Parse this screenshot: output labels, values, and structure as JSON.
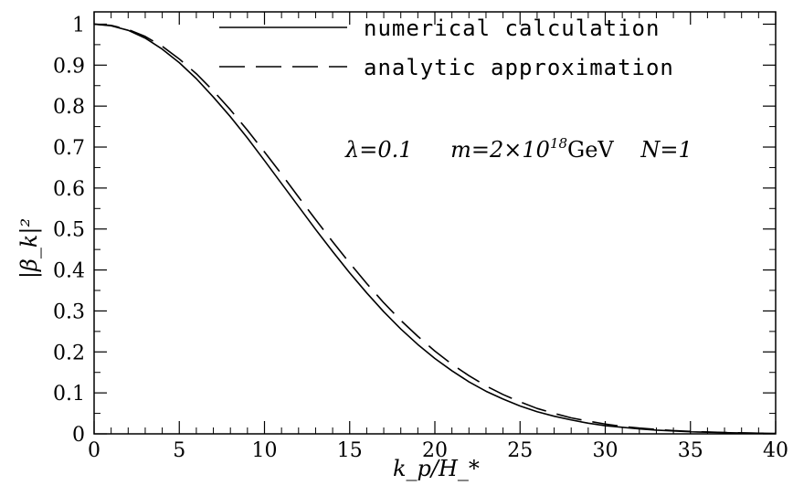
{
  "chart_data": {
    "type": "line",
    "x_ticks": [
      0,
      5,
      10,
      15,
      20,
      25,
      30,
      35,
      40
    ],
    "y_ticks": [
      0,
      0.1,
      0.2,
      0.3,
      0.4,
      0.5,
      0.6,
      0.7,
      0.8,
      0.9,
      1
    ],
    "x_tick_labels": [
      "0",
      "5",
      "10",
      "15",
      "20",
      "25",
      "30",
      "35",
      "40"
    ],
    "y_tick_labels": [
      "0",
      "0.1",
      "0.2",
      "0.3",
      "0.4",
      "0.5",
      "0.6",
      "0.7",
      "0.8",
      "0.9",
      "1"
    ],
    "xlim": [
      0,
      40
    ],
    "ylim": [
      0,
      1.03
    ],
    "xlabel": "k_p/H_*",
    "ylabel": "|β_k|²",
    "legend_position": "top",
    "grid": false,
    "annotation": {
      "lambda": "λ=0.1",
      "mass_prefix": "m=2×10",
      "mass_exp": "18",
      "mass_unit": "GeV",
      "n": "N=1"
    },
    "series": [
      {
        "name": "numerical calculation",
        "style": "solid",
        "x": [
          0,
          1,
          2,
          3,
          4,
          5,
          6,
          7,
          8,
          9,
          10,
          11,
          12,
          13,
          14,
          15,
          16,
          17,
          18,
          19,
          20,
          21,
          22,
          23,
          24,
          25,
          26,
          27,
          28,
          29,
          30,
          31,
          32,
          33,
          34,
          35,
          36,
          37,
          38,
          39,
          40
        ],
        "y": [
          1.0,
          0.996,
          0.985,
          0.966,
          0.939,
          0.906,
          0.867,
          0.822,
          0.774,
          0.722,
          0.667,
          0.611,
          0.555,
          0.499,
          0.445,
          0.393,
          0.344,
          0.298,
          0.256,
          0.218,
          0.184,
          0.154,
          0.127,
          0.104,
          0.085,
          0.068,
          0.054,
          0.043,
          0.034,
          0.026,
          0.02,
          0.016,
          0.012,
          0.009,
          0.007,
          0.005,
          0.004,
          0.003,
          0.002,
          0.0015,
          0.001
        ]
      },
      {
        "name": "analytic approximation",
        "style": "dashed",
        "x": [
          0,
          1,
          2,
          3,
          4,
          5,
          6,
          7,
          8,
          9,
          10,
          11,
          12,
          13,
          14,
          15,
          16,
          17,
          18,
          19,
          20,
          21,
          22,
          23,
          24,
          25,
          26,
          27,
          28,
          29,
          30,
          31,
          32,
          33,
          34,
          35,
          36,
          37,
          38,
          39,
          40
        ],
        "y": [
          1.0,
          0.997,
          0.987,
          0.97,
          0.946,
          0.915,
          0.879,
          0.837,
          0.791,
          0.741,
          0.688,
          0.634,
          0.578,
          0.523,
          0.469,
          0.417,
          0.367,
          0.32,
          0.277,
          0.238,
          0.202,
          0.17,
          0.142,
          0.117,
          0.096,
          0.078,
          0.062,
          0.05,
          0.039,
          0.031,
          0.024,
          0.018,
          0.014,
          0.011,
          0.008,
          0.006,
          0.0045,
          0.0033,
          0.0024,
          0.0017,
          0.0012
        ]
      }
    ]
  }
}
